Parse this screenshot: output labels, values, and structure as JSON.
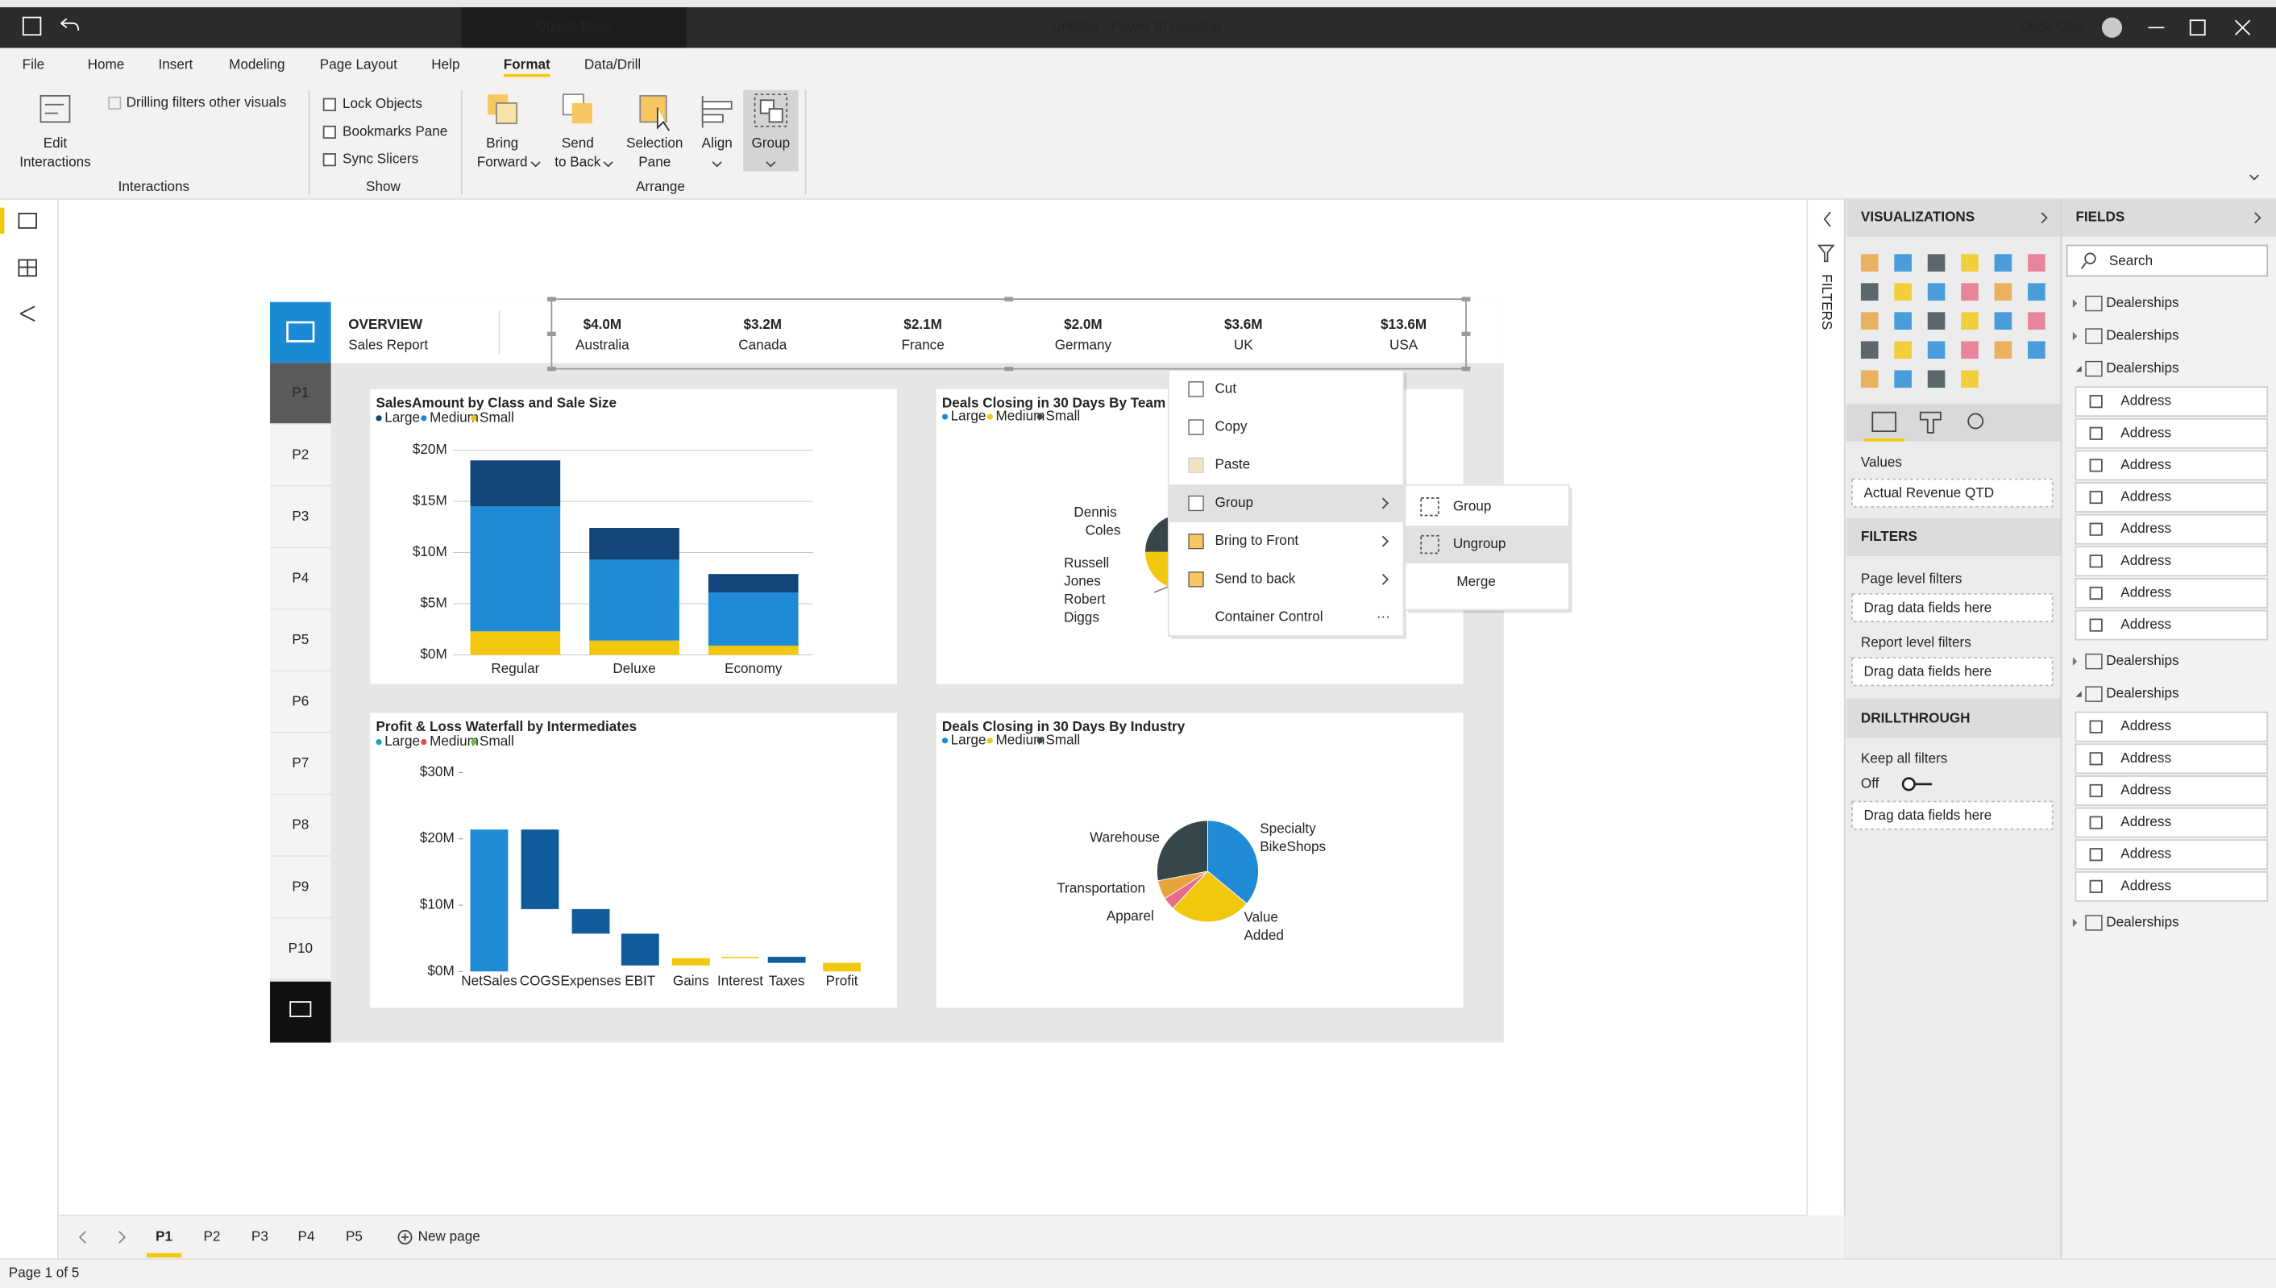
{
  "title_bar": {
    "context_tab": "Object Tools",
    "title": "Untitled - Power BI Desktop",
    "user": "Deok Choi"
  },
  "menu": {
    "items": [
      "File",
      "Home",
      "Insert",
      "Modeling",
      "Page Layout",
      "Help",
      "Format",
      "Data/Drill"
    ],
    "active": 6
  },
  "ribbon": {
    "edit_interactions": [
      "Edit",
      "Interactions"
    ],
    "drilling_filters": "Drilling filters other visuals",
    "interactions_group": "Interactions",
    "show_checkboxes": [
      "Lock Objects",
      "Bookmarks Pane",
      "Sync Slicers"
    ],
    "show_group": "Show",
    "arrange_buttons": [
      [
        "Bring",
        "Forward"
      ],
      [
        "Send",
        "to Back"
      ],
      [
        "Selection",
        "Pane"
      ],
      [
        "Align"
      ],
      [
        "Group"
      ]
    ],
    "arrange_group": "Arrange"
  },
  "report": {
    "title": "OVERVIEW",
    "subtitle": "Sales Report",
    "kpis": [
      {
        "value": "$4.0M",
        "label": "Australia"
      },
      {
        "value": "$3.2M",
        "label": "Canada"
      },
      {
        "value": "$2.1M",
        "label": "France"
      },
      {
        "value": "$2.0M",
        "label": "Germany"
      },
      {
        "value": "$3.6M",
        "label": "UK"
      },
      {
        "value": "$13.6M",
        "label": "USA"
      }
    ],
    "pages": [
      "P1",
      "P2",
      "P3",
      "P4",
      "P5",
      "P6",
      "P7",
      "P8",
      "P9",
      "P10"
    ],
    "active_page": 0
  },
  "visuals": [
    {
      "type": "stacked-bar",
      "title": "SalesAmount by Class and Sale Size",
      "categories": [
        "Regular",
        "Deluxe",
        "Economy"
      ],
      "series": [
        {
          "name": "Large",
          "color": "#12467a",
          "values": [
            4.5,
            3.1,
            1.8
          ]
        },
        {
          "name": "Medium",
          "color": "#1f8ad6",
          "values": [
            12.2,
            7.9,
            5.2
          ]
        },
        {
          "name": "Small",
          "color": "#f2c80f",
          "values": [
            2.3,
            1.4,
            0.9
          ]
        }
      ],
      "ylim": [
        0,
        20
      ],
      "yticks": [
        {
          "value": 0,
          "label": "$0M"
        },
        {
          "value": 5,
          "label": "$5M"
        },
        {
          "value": 10,
          "label": "$10M"
        },
        {
          "value": 15,
          "label": "$15M"
        },
        {
          "value": 20,
          "label": "$20M"
        }
      ],
      "grid": true
    },
    {
      "type": "pie",
      "title": "Deals Closing in 30 Days By Team",
      "legend": [
        {
          "name": "Large",
          "color": "#1f8ad6"
        },
        {
          "name": "Medium",
          "color": "#f2c80f"
        },
        {
          "name": "Small",
          "color": "#374649"
        }
      ],
      "categories": [
        "Dennis Coles",
        "Russell Jones",
        "Robert Diggs"
      ]
    },
    {
      "type": "waterfall",
      "title": "Profit & Loss Waterfall by Intermediates",
      "legend": [
        {
          "name": "Large",
          "color": "#17a2b8"
        },
        {
          "name": "Medium",
          "color": "#e04e4e"
        },
        {
          "name": "Small",
          "color": "#6cc04a"
        }
      ],
      "categories": [
        "NetSales",
        "COGS",
        "Expenses",
        "EBIT",
        "Gains",
        "Interest",
        "Taxes",
        "Profit"
      ],
      "values": [
        21.4,
        -12,
        -3.7,
        -4.8,
        1.1,
        0.2,
        -0.9,
        1.3
      ],
      "colors": [
        "#1f8ad6",
        "#0f5b9c",
        "#0f5b9c",
        "#0f5b9c",
        "#f2c80f",
        "#f2c80f",
        "#0f5b9c",
        "#f2c80f"
      ],
      "ylim": [
        0,
        30
      ],
      "yticks": [
        {
          "value": 0,
          "label": "$0M"
        },
        {
          "value": 10,
          "label": "$10M"
        },
        {
          "value": 20,
          "label": "$20M"
        },
        {
          "value": 30,
          "label": "$30M"
        }
      ]
    },
    {
      "type": "pie",
      "title": "Deals Closing in 30 Days By Industry",
      "legend": [
        {
          "name": "Large",
          "color": "#1f8ad6"
        },
        {
          "name": "Medium",
          "color": "#f2c80f"
        },
        {
          "name": "Small",
          "color": "#374649"
        }
      ],
      "categories": [
        "Specialty BikeShops",
        "Value Added",
        "Apparel",
        "Transportation",
        "Warehouse"
      ],
      "values": [
        36,
        26,
        4,
        6,
        28
      ],
      "colors": [
        "#1f8ad6",
        "#f2c80f",
        "#e66c8a",
        "#e8a33d",
        "#374649"
      ]
    }
  ],
  "context_menu": {
    "items": [
      {
        "label": "Cut"
      },
      {
        "label": "Copy"
      },
      {
        "label": "Paste",
        "disabled": true
      },
      {
        "label": "Group",
        "submenu": true
      },
      {
        "label": "Bring to Front",
        "submenu": true
      },
      {
        "label": "Send to back",
        "submenu": true
      },
      {
        "label": "Container Control",
        "more": "···"
      }
    ],
    "highlighted": 3,
    "submenu": {
      "items": [
        {
          "label": "Group"
        },
        {
          "label": "Ungroup"
        },
        {
          "label": "Merge",
          "disabled": true
        }
      ],
      "highlighted": 1
    }
  },
  "filters_pane": {
    "label": "FILTERS"
  },
  "visualizations": {
    "title": "VISUALIZATIONS",
    "values_label": "Values",
    "values_field": "Actual Revenue QTD"
  },
  "filters": {
    "title": "FILTERS",
    "page_level": "Page level filters",
    "page_hint": "Drag data fields here",
    "report_level": "Report level filters",
    "report_hint": "Drag data fields here"
  },
  "drillthrough": {
    "title": "DRILLTHROUGH",
    "keep_all": "Keep all filters",
    "toggle": "Off",
    "hint": "Drag data fields here"
  },
  "fields": {
    "title": "FIELDS",
    "search": "Search",
    "tables": [
      {
        "name": "Dealerships"
      },
      {
        "name": "Dealerships"
      },
      {
        "name": "Dealerships",
        "fields": [
          "Address",
          "Address",
          "Address",
          "Address",
          "Address",
          "Address",
          "Address",
          "Address"
        ]
      },
      {
        "name": "Dealerships"
      },
      {
        "name": "Dealerships",
        "fields": [
          "Address",
          "Address",
          "Address",
          "Address",
          "Address",
          "Address"
        ]
      },
      {
        "name": "Dealerships"
      }
    ]
  },
  "footer": {
    "pages": [
      "P1",
      "P2",
      "P3",
      "P4",
      "P5"
    ],
    "active_page": 0,
    "new_page": "New page",
    "status": "Page 1 of 5"
  }
}
